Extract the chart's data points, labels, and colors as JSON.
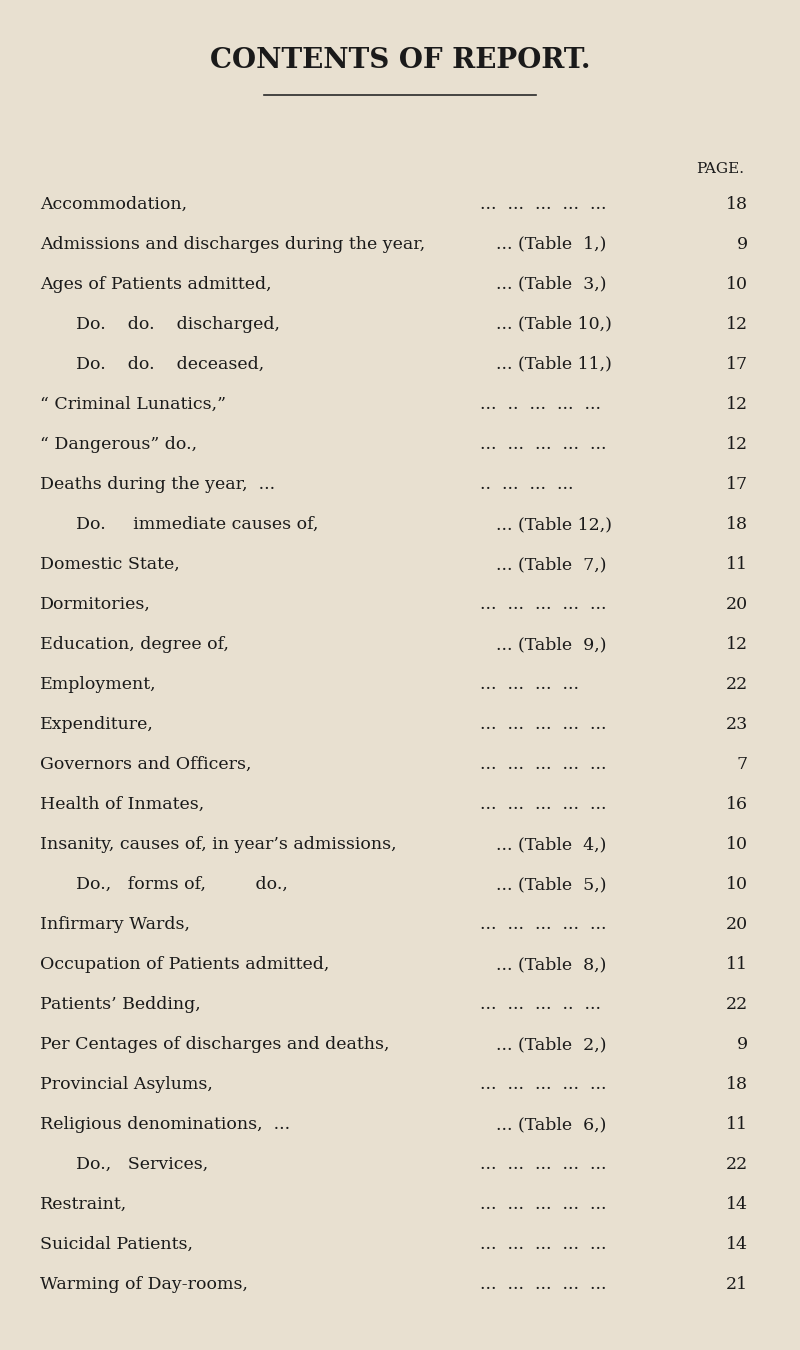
{
  "title": "CONTENTS OF REPORT.",
  "background_color": "#e8e0d0",
  "page_label": "PAGE.",
  "entries": [
    {
      "text": "Accommodation,",
      "dots": "...  ...  ...  ...  ...",
      "table": "",
      "page": "18",
      "indent": 0
    },
    {
      "text": "Admissions and discharges during the year,",
      "dots": "...",
      "table": "... (Table  1,)",
      "page": "9",
      "indent": 0
    },
    {
      "text": "Ages of Patients admitted,",
      "dots": "...  ...",
      "table": "... (Table  3,)",
      "page": "10",
      "indent": 0
    },
    {
      "text": "Do.    do.    discharged,",
      "dots": "...  ...",
      "table": "... (Table 10,)",
      "page": "12",
      "indent": 1
    },
    {
      "text": "Do.    do.    deceased,",
      "dots": "...  ...",
      "table": "... (Table 11,)",
      "page": "17",
      "indent": 1
    },
    {
      "text": "“ Criminal Lunatics,”",
      "dots": "...  ..  ...  ...  ...",
      "table": "",
      "page": "12",
      "indent": 0
    },
    {
      "text": "“ Dangerous” do.,",
      "dots": "...  ...  ...  ...  ...",
      "table": "",
      "page": "12",
      "indent": 0
    },
    {
      "text": "Deaths during the year,  ...",
      "dots": "..  ...  ...  ...",
      "table": "",
      "page": "17",
      "indent": 0
    },
    {
      "text": "Do.     immediate causes of,",
      "dots": "...  ...",
      "table": "... (Table 12,)",
      "page": "18",
      "indent": 1
    },
    {
      "text": "Domestic State,",
      "dots": "...  ...  ...",
      "table": "... (Table  7,)",
      "page": "11",
      "indent": 0
    },
    {
      "text": "Dormitories,",
      "dots": "...  ...  ...  ...  ...",
      "table": "",
      "page": "20",
      "indent": 0
    },
    {
      "text": "Education, degree of,",
      "dots": "...  ...  ...",
      "table": "... (Table  9,)",
      "page": "12",
      "indent": 0
    },
    {
      "text": "Employment,",
      "dots": "...  ...  ...  ...",
      "table": "",
      "page": "22",
      "indent": 0
    },
    {
      "text": "Expenditure,",
      "dots": "...  ...  ...  ...  ...",
      "table": "",
      "page": "23",
      "indent": 0
    },
    {
      "text": "Governors and Officers,",
      "dots": "...  ...  ...  ...  ...",
      "table": "",
      "page": "7",
      "indent": 0
    },
    {
      "text": "Health of Inmates,",
      "dots": "...  ...  ...  ...  ...",
      "table": "",
      "page": "16",
      "indent": 0
    },
    {
      "text": "Insanity, causes of, in year’s admissions,",
      "dots": "...  .",
      "table": "... (Table  4,)",
      "page": "10",
      "indent": 0
    },
    {
      "text": "Do.,   forms of,         do.,",
      "dots": "  .",
      "table": "... (Table  5,)",
      "page": "10",
      "indent": 1
    },
    {
      "text": "Infirmary Wards,",
      "dots": "...  ...  ...  ...  ...",
      "table": "",
      "page": "20",
      "indent": 0
    },
    {
      "text": "Occupation of Patients admitted,",
      "dots": "...  ...",
      "table": "... (Table  8,)",
      "page": "11",
      "indent": 0
    },
    {
      "text": "Patients’ Bedding,",
      "dots": "...  ...  ...  ..  ...",
      "table": "",
      "page": "22",
      "indent": 0
    },
    {
      "text": "Per Centages of discharges and deaths,",
      "dots": "...",
      "table": "... (Table  2,)",
      "page": "9",
      "indent": 0
    },
    {
      "text": "Provincial Asylums,",
      "dots": "...  ...  ...  ...  ...",
      "table": "",
      "page": "18",
      "indent": 0
    },
    {
      "text": "Religious denominations,  ...",
      "dots": "  ...  ...",
      "table": "... (Table  6,)",
      "page": "11",
      "indent": 0
    },
    {
      "text": "Do.,   Services,",
      "dots": "...  ...  ...  ...  ...",
      "table": "",
      "page": "22",
      "indent": 1
    },
    {
      "text": "Restraint,",
      "dots": "...  ...  ...  ...  ...",
      "table": "",
      "page": "14",
      "indent": 0
    },
    {
      "text": "Suicidal Patients,",
      "dots": "...  ...  ...  ...  ...",
      "table": "",
      "page": "14",
      "indent": 0
    },
    {
      "text": "Warming of Day-rooms,",
      "dots": "...  ...  ...  ...  ...",
      "table": "",
      "page": "21",
      "indent": 0
    }
  ],
  "title_fontsize": 20,
  "entry_fontsize": 12.5,
  "page_label_fontsize": 11
}
